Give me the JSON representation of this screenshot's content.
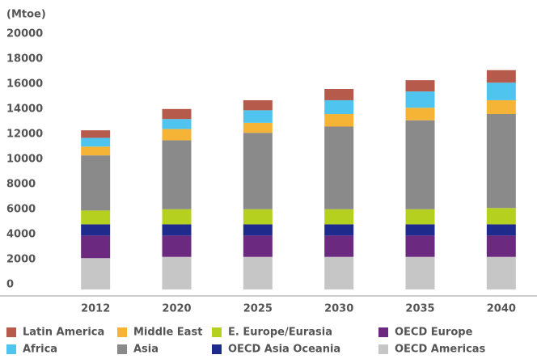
{
  "chart_data": {
    "type": "stacked_bar",
    "y_label": "(Mtoe)",
    "categories": [
      "2012",
      "2020",
      "2025",
      "2030",
      "2035",
      "2040"
    ],
    "series": [
      {
        "name": "OECD Americas",
        "color": "#c6c6c6",
        "values": [
          2500,
          2600,
          2600,
          2600,
          2600,
          2600
        ]
      },
      {
        "name": "OECD Europe",
        "color": "#6b2a7f",
        "values": [
          1800,
          1700,
          1700,
          1700,
          1700,
          1700
        ]
      },
      {
        "name": "OECD Asia Oceania",
        "color": "#1e2b8c",
        "values": [
          900,
          900,
          900,
          900,
          900,
          900
        ]
      },
      {
        "name": "E. Europe/Eurasia",
        "color": "#b6d01f",
        "values": [
          1100,
          1200,
          1200,
          1200,
          1200,
          1300
        ]
      },
      {
        "name": "Asia",
        "color": "#8a8a8a",
        "values": [
          4400,
          5500,
          6100,
          6600,
          7100,
          7500
        ]
      },
      {
        "name": "Middle East",
        "color": "#f6b437",
        "values": [
          700,
          900,
          800,
          1000,
          1000,
          1100
        ]
      },
      {
        "name": "Africa",
        "color": "#4fc4ee",
        "values": [
          700,
          800,
          1000,
          1100,
          1300,
          1400
        ]
      },
      {
        "name": "Latin America",
        "color": "#b65b4b",
        "values": [
          600,
          800,
          800,
          900,
          900,
          1000
        ]
      }
    ],
    "ylim": [
      0,
      20000
    ],
    "yticks": [
      0,
      2000,
      4000,
      6000,
      8000,
      10000,
      12000,
      14000,
      16000,
      18000,
      20000
    ]
  }
}
